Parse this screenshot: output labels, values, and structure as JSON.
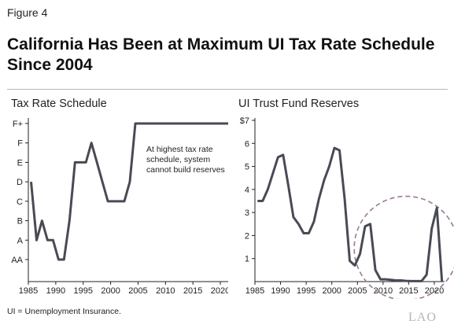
{
  "figure_label": "Figure 4",
  "title": "California Has Been at Maximum UI Tax Rate Schedule Since 2004",
  "footnote": "UI = Unemployment Insurance.",
  "logo": "LAO",
  "colors": {
    "series": "#4a4a55",
    "axis": "#222222",
    "circle": "#9a7a96",
    "rule": "#b8b8b8"
  },
  "chart_data": [
    {
      "type": "line",
      "title": "Tax Rate Schedule",
      "y_categories": [
        "AA",
        "A",
        "B",
        "C",
        "D",
        "E",
        "F",
        "F+"
      ],
      "xlim": [
        1985,
        2022
      ],
      "x_ticks": [
        1985,
        1990,
        1995,
        2000,
        2005,
        2010,
        2015,
        2020
      ],
      "grid": false,
      "annotation": "At highest tax rate schedule, system cannot build reserves",
      "series": [
        {
          "x": [
            1985.5,
            1986.5,
            1987.5,
            1988.5,
            1989.5,
            1990.5,
            1991.5,
            1992.5,
            1993.5,
            1994.5,
            1995.5,
            1996.5,
            1997.5,
            1998.5,
            1999.5,
            2000.5,
            2001.5,
            2002.5,
            2003.5,
            2004.5,
            2005.5,
            2022.5
          ],
          "y": [
            "D",
            "A",
            "B",
            "A",
            "A",
            "AA",
            "AA",
            "B",
            "E",
            "E",
            "E",
            "F",
            "E",
            "D",
            "C",
            "C",
            "C",
            "C",
            "D",
            "F+",
            "F+",
            "F+"
          ]
        }
      ]
    },
    {
      "type": "line",
      "title": "UI Trust Fund Reserves",
      "ylim": [
        0,
        7
      ],
      "y_ticks": [
        "$7",
        "6",
        "5",
        "4",
        "3",
        "2",
        "1"
      ],
      "xlim": [
        1985,
        2022
      ],
      "x_ticks": [
        1985,
        1990,
        1995,
        2000,
        2005,
        2010,
        2015,
        2020
      ],
      "grid": false,
      "highlight": "dashed circle around 2009–2019 near-zero reserves",
      "series": [
        {
          "x": [
            1985.5,
            1986.5,
            1987.5,
            1988.5,
            1989.5,
            1990.5,
            1991.5,
            1992.5,
            1993.5,
            1994.5,
            1995.5,
            1996.5,
            1997.5,
            1998.5,
            1999.5,
            2000.5,
            2001.5,
            2002.5,
            2003.5,
            2004.5,
            2005.5,
            2006.5,
            2007.5,
            2008.5,
            2009.5,
            2010.5,
            2011.5,
            2012.5,
            2013.5,
            2014.5,
            2015.5,
            2016.5,
            2017.5,
            2018.5,
            2019.5,
            2020.5,
            2021.5
          ],
          "y": [
            3.5,
            3.5,
            4.0,
            4.7,
            5.4,
            5.5,
            4.2,
            2.8,
            2.5,
            2.1,
            2.1,
            2.6,
            3.6,
            4.4,
            5.0,
            5.8,
            5.7,
            3.6,
            0.9,
            0.7,
            1.2,
            2.4,
            2.5,
            0.5,
            0.1,
            0.1,
            0.08,
            0.05,
            0.05,
            0.03,
            0.02,
            0.02,
            0.02,
            0.3,
            2.3,
            3.2,
            0.0
          ]
        }
      ]
    }
  ]
}
